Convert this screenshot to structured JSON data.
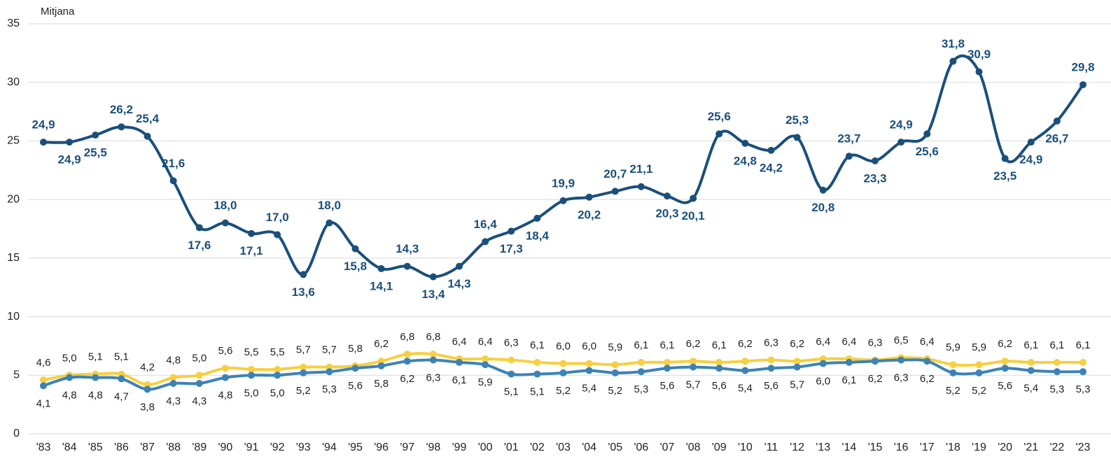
{
  "chart_data": {
    "type": "line",
    "ylabel": "Mitjana",
    "categories": [
      "'83",
      "'84",
      "'85",
      "'86",
      "'87",
      "'88",
      "'89",
      "'90",
      "'91",
      "'92",
      "'93",
      "'94",
      "'95",
      "'96",
      "'97",
      "'98",
      "'99",
      "'00",
      "'01",
      "'02",
      "'03",
      "'04",
      "'05",
      "'06",
      "'07",
      "'08",
      "'09",
      "'10",
      "'11",
      "'12",
      "'13",
      "'14",
      "'15",
      "'16",
      "'17",
      "'18",
      "'19",
      "'20",
      "'21",
      "'22",
      "'23"
    ],
    "ylim": [
      0,
      35
    ],
    "yticks": [
      0,
      5,
      10,
      15,
      20,
      25,
      30,
      35
    ],
    "grid": true,
    "series": [
      {
        "color": "#1b4f7b",
        "label_style": "bold",
        "values": [
          24.9,
          24.9,
          25.5,
          26.2,
          25.4,
          21.6,
          17.6,
          18.0,
          17.1,
          17.0,
          13.6,
          18.0,
          15.8,
          14.1,
          14.3,
          13.4,
          14.3,
          16.4,
          17.3,
          18.4,
          19.9,
          20.2,
          20.7,
          21.1,
          20.3,
          20.1,
          25.6,
          24.8,
          24.2,
          25.3,
          20.8,
          23.7,
          23.3,
          24.9,
          25.6,
          31.8,
          30.9,
          23.5,
          24.9,
          26.7,
          29.8
        ],
        "value_labels": [
          "24,9",
          "24,9",
          "25,5",
          "26,2",
          "25,4",
          "21,6",
          "17,6",
          "18,0",
          "17,1",
          "17,0",
          "13,6",
          "18,0",
          "15,8",
          "14,1",
          "14,3",
          "13,4",
          "14,3",
          "16,4",
          "17,3",
          "18,4",
          "19,9",
          "20,2",
          "20,7",
          "21,1",
          "20,3",
          "20,1",
          "25,6",
          "24,8",
          "24,2",
          "25,3",
          "20,8",
          "23,7",
          "23,3",
          "24,9",
          "25,6",
          "31,8",
          "30,9",
          "23,5",
          "24,9",
          "26,7",
          "29,8"
        ]
      },
      {
        "color": "#f7cf3f",
        "label_position": "above",
        "values": [
          4.6,
          5.0,
          5.1,
          5.1,
          4.2,
          4.8,
          5.0,
          5.6,
          5.5,
          5.5,
          5.7,
          5.7,
          5.8,
          6.2,
          6.8,
          6.8,
          6.4,
          6.4,
          6.3,
          6.1,
          6.0,
          6.0,
          5.9,
          6.1,
          6.1,
          6.2,
          6.1,
          6.2,
          6.3,
          6.2,
          6.4,
          6.4,
          6.3,
          6.5,
          6.4,
          5.9,
          5.9,
          6.2,
          6.1,
          6.1,
          6.1
        ],
        "value_labels": [
          "4,6",
          "5,0",
          "5,1",
          "5,1",
          "4,2",
          "4,8",
          "5,0",
          "5,6",
          "5,5",
          "5,5",
          "5,7",
          "5,7",
          "5,8",
          "6,2",
          "6,8",
          "6,8",
          "6,4",
          "6,4",
          "6,3",
          "6,1",
          "6,0",
          "6,0",
          "5,9",
          "6,1",
          "6,1",
          "6,2",
          "6,1",
          "6,2",
          "6,3",
          "6,2",
          "6,4",
          "6,4",
          "6,3",
          "6,5",
          "6,4",
          "5,9",
          "5,9",
          "6,2",
          "6,1",
          "6,1",
          "6,1"
        ]
      },
      {
        "color": "#3d82b6",
        "label_position": "below",
        "values": [
          4.1,
          4.8,
          4.8,
          4.7,
          3.8,
          4.3,
          4.3,
          4.8,
          5.0,
          5.0,
          5.2,
          5.3,
          5.6,
          5.8,
          6.2,
          6.3,
          6.1,
          5.9,
          5.1,
          5.1,
          5.2,
          5.4,
          5.2,
          5.3,
          5.6,
          5.7,
          5.6,
          5.4,
          5.6,
          5.7,
          6.0,
          6.1,
          6.2,
          6.3,
          6.2,
          5.2,
          5.2,
          5.6,
          5.4,
          5.3,
          5.3
        ],
        "value_labels": [
          "4,1",
          "4,8",
          "4,8",
          "4,7",
          "3,8",
          "4,3",
          "4,3",
          "4,8",
          "5,0",
          "5,0",
          "5,2",
          "5,3",
          "5,6",
          "5,8",
          "6,2",
          "6,3",
          "6,1",
          "5,9",
          "5,1",
          "5,1",
          "5,2",
          "5,4",
          "5,2",
          "5,3",
          "5,6",
          "5,7",
          "5,6",
          "5,4",
          "5,6",
          "5,7",
          "6,0",
          "6,1",
          "6,2",
          "6,3",
          "6,2",
          "5,2",
          "5,2",
          "5,6",
          "5,4",
          "5,3",
          "5,3"
        ]
      }
    ]
  }
}
